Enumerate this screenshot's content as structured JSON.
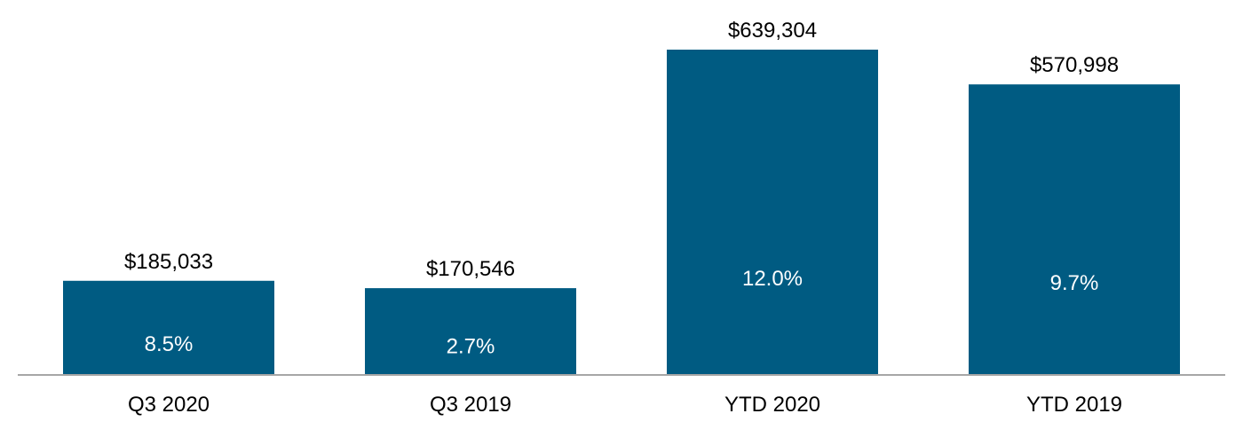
{
  "chart_data": {
    "type": "bar",
    "title": "",
    "xlabel": "",
    "ylabel": "",
    "grid": false,
    "legend": "none",
    "ylim": [
      0,
      700000
    ],
    "categories": [
      "Q3 2020",
      "Q3 2019",
      "YTD 2020",
      "YTD 2019"
    ],
    "values": [
      185033,
      170546,
      639304,
      570998
    ],
    "value_labels": [
      "$185,033",
      "$170,546",
      "$639,304",
      "$570,998"
    ],
    "percent_labels": [
      "8.5%",
      "2.7%",
      "12.0%",
      "9.7%"
    ],
    "bar_color": "#005b82",
    "axis_color": "#a6a6a6"
  }
}
